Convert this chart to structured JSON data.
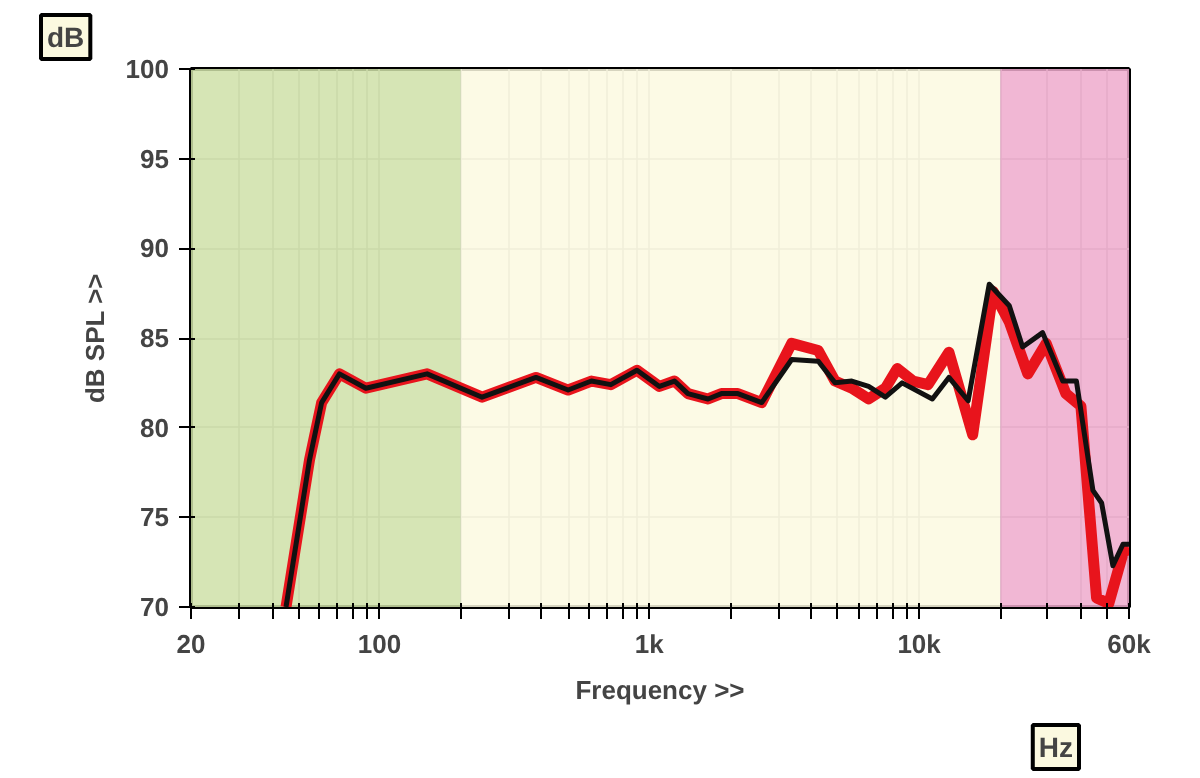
{
  "chart_data": {
    "type": "line",
    "xlabel": "Frequency >>",
    "ylabel": "dB SPL >>",
    "annotations": [
      "dB",
      "Hz"
    ],
    "log": "x",
    "grid": true,
    "line_style": "solid",
    "marker": "none",
    "xlim": [
      20,
      60000
    ],
    "ylim": [
      70,
      100
    ],
    "xticks": [
      20,
      {
        "value": 30,
        "label": null
      },
      {
        "value": 40,
        "label": null
      },
      {
        "value": 50,
        "label": null
      },
      {
        "value": 60,
        "label": null
      },
      {
        "value": 70,
        "label": null
      },
      {
        "value": 80,
        "label": null
      },
      {
        "value": 90,
        "label": null
      },
      100,
      {
        "value": 200,
        "label": null
      },
      {
        "value": 300,
        "label": null
      },
      {
        "value": 400,
        "label": null
      },
      {
        "value": 500,
        "label": null
      },
      {
        "value": 600,
        "label": null
      },
      {
        "value": 700,
        "label": null
      },
      {
        "value": 800,
        "label": null
      },
      {
        "value": 900,
        "label": null
      },
      {
        "value": 1000,
        "label": "1k"
      },
      {
        "value": 2000,
        "label": null
      },
      {
        "value": 3000,
        "label": null
      },
      {
        "value": 4000,
        "label": null
      },
      {
        "value": 5000,
        "label": null
      },
      {
        "value": 6000,
        "label": null
      },
      {
        "value": 7000,
        "label": null
      },
      {
        "value": 8000,
        "label": null
      },
      {
        "value": 9000,
        "label": null
      },
      {
        "value": 10000,
        "label": "10k"
      },
      {
        "value": 20000,
        "label": null
      },
      {
        "value": 30000,
        "label": null
      },
      {
        "value": 40000,
        "label": null
      },
      {
        "value": 50000,
        "label": null
      },
      {
        "value": 60000,
        "label": "60k"
      }
    ],
    "yticks": [
      70,
      75,
      80,
      85,
      90,
      95,
      100
    ],
    "bands": [
      {
        "axis": "x",
        "from": 20,
        "to": 200,
        "color": "#cfe0a8"
      },
      {
        "axis": "x",
        "from": 200,
        "to": 20000,
        "color": "#fbf9e0"
      },
      {
        "axis": "x",
        "from": 20000,
        "to": 60000,
        "color": "#eeaacc"
      }
    ],
    "series": [
      {
        "color": "#e8141c",
        "x": [
          45,
          55,
          61,
          71,
          89,
          150,
          240,
          380,
          500,
          610,
          720,
          900,
          1090,
          1240,
          1390,
          1650,
          1850,
          2130,
          2610,
          3370,
          4230,
          4880,
          5630,
          6500,
          7500,
          8300,
          9500,
          10800,
          12900,
          15800,
          18800,
          21600,
          25300,
          29600,
          35000,
          39800,
          45500,
          50500,
          57000,
          60000
        ],
        "values": [
          70,
          78.2,
          81.4,
          83.0,
          82.2,
          83.0,
          81.7,
          82.8,
          82.1,
          82.6,
          82.4,
          83.2,
          82.3,
          82.6,
          81.9,
          81.6,
          81.9,
          81.9,
          81.4,
          84.7,
          84.3,
          82.6,
          82.2,
          81.6,
          82.2,
          83.3,
          82.6,
          82.4,
          84.2,
          79.6,
          87.6,
          85.9,
          83.0,
          84.7,
          81.9,
          81.2,
          70.5,
          70.2,
          73.0,
          73.3
        ]
      },
      {
        "color": "#111111",
        "x": [
          45,
          55,
          61,
          71,
          89,
          150,
          240,
          380,
          500,
          610,
          720,
          900,
          1090,
          1240,
          1390,
          1650,
          1850,
          2130,
          2610,
          3370,
          4230,
          4880,
          5630,
          6500,
          7500,
          8650,
          11200,
          12900,
          15200,
          18200,
          21600,
          24200,
          28700,
          34100,
          38300,
          44100,
          47500,
          52300,
          57000,
          60000
        ],
        "values": [
          70,
          78.2,
          81.4,
          83.0,
          82.2,
          83.0,
          81.7,
          82.8,
          82.1,
          82.6,
          82.4,
          83.2,
          82.3,
          82.6,
          81.9,
          81.6,
          81.9,
          81.9,
          81.4,
          83.8,
          83.7,
          82.5,
          82.6,
          82.3,
          81.7,
          82.5,
          81.6,
          82.8,
          81.5,
          88.0,
          86.8,
          84.5,
          85.3,
          82.6,
          82.6,
          76.5,
          75.8,
          72.3,
          73.5,
          73.5
        ]
      }
    ]
  }
}
